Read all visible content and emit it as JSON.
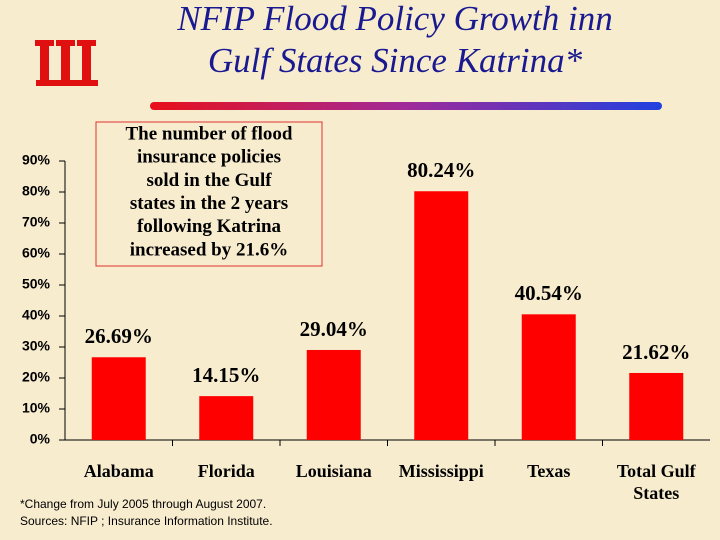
{
  "chart_data": {
    "type": "bar",
    "title": [
      "NFIP Flood Policy Growth inn",
      "Gulf States Since Katrina*"
    ],
    "annotation": [
      "The number of flood",
      "insurance policies",
      "sold in the Gulf",
      "states in the 2 years",
      "following Katrina",
      "increased by 21.6%"
    ],
    "footnote": [
      "*Change from July 2005 through August 2007.",
      "Sources: NFIP ; Insurance Information Institute."
    ],
    "categories": [
      "Alabama",
      "Florida",
      "Louisiana",
      "Mississippi",
      "Texas",
      "Total Gulf States"
    ],
    "values": [
      26.69,
      14.15,
      29.04,
      80.24,
      40.54,
      21.62
    ],
    "value_labels": [
      "26.69%",
      "14.15%",
      "29.04%",
      "80.24%",
      "40.54%",
      "21.62%"
    ],
    "color": "#ff0000",
    "ylim": [
      0,
      90
    ],
    "yticks": [
      {
        "value": 0,
        "label": "0%"
      },
      {
        "value": 10,
        "label": "10%"
      },
      {
        "value": 20,
        "label": "20%"
      },
      {
        "value": 30,
        "label": "30%"
      },
      {
        "value": 40,
        "label": "40%"
      },
      {
        "value": 50,
        "label": "50%"
      },
      {
        "value": 60,
        "label": "60%"
      },
      {
        "value": 70,
        "label": "70%"
      },
      {
        "value": 80,
        "label": "80%"
      },
      {
        "value": 90,
        "label": "90%"
      }
    ],
    "grid": false
  }
}
